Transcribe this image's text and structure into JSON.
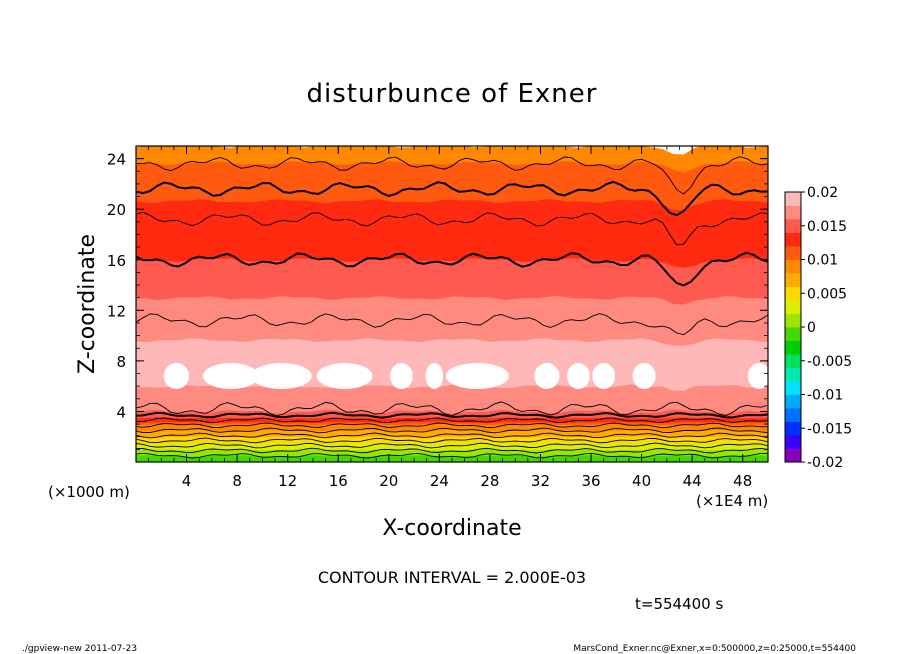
{
  "chart_data": {
    "type": "heatmap",
    "title": "disturbunce of Exner",
    "xlabel": "X-coordinate",
    "ylabel": "Z-coordinate",
    "x_unit_left": "(×1000 m)",
    "x_unit_right": "(×1E4 m)",
    "xlim": [
      0,
      50
    ],
    "ylim": [
      0,
      25
    ],
    "x_ticks": [
      "4",
      "8",
      "12",
      "16",
      "20",
      "24",
      "28",
      "32",
      "36",
      "40",
      "44",
      "48"
    ],
    "y_ticks": [
      "4",
      "8",
      "12",
      "16",
      "20",
      "24"
    ],
    "colorbar": {
      "range": [
        -0.02,
        0.02
      ],
      "tick_labels": [
        "0.02",
        "0.015",
        "0.01",
        "0.005",
        "0",
        "-0.005",
        "-0.01",
        "-0.015",
        "-0.02"
      ],
      "colors": [
        "#8800c0",
        "#3a00ff",
        "#0030ff",
        "#0070ff",
        "#00a8ff",
        "#00e0ff",
        "#00e8b0",
        "#00e060",
        "#00cc00",
        "#44d800",
        "#99e600",
        "#ddee00",
        "#ffd800",
        "#ffaa00",
        "#ff8800",
        "#ff5a10",
        "#ff2a10",
        "#ff5a50",
        "#ff8a80",
        "#ffb8b8"
      ]
    },
    "contour_interval": "CONTOUR INTERVAL = 2.000E-03",
    "time_label": "t=554400 s",
    "profile_levels": [
      {
        "z": 0,
        "value": -0.001
      },
      {
        "z": 0.5,
        "value": 0.0
      },
      {
        "z": 1.0,
        "value": 0.002
      },
      {
        "z": 1.5,
        "value": 0.004
      },
      {
        "z": 2.0,
        "value": 0.006
      },
      {
        "z": 2.5,
        "value": 0.008
      },
      {
        "z": 3.0,
        "value": 0.01
      },
      {
        "z": 3.5,
        "value": 0.014
      },
      {
        "z": 4.0,
        "value": 0.016
      },
      {
        "z": 5.0,
        "value": 0.017
      },
      {
        "z": 6.0,
        "value": 0.018
      },
      {
        "z": 7.0,
        "value": 0.0195
      },
      {
        "z": 8.0,
        "value": 0.0188
      },
      {
        "z": 10.0,
        "value": 0.0178
      },
      {
        "z": 12.0,
        "value": 0.0168
      },
      {
        "z": 14.0,
        "value": 0.0152
      },
      {
        "z": 16.0,
        "value": 0.014
      },
      {
        "z": 18.0,
        "value": 0.0132
      },
      {
        "z": 20.0,
        "value": 0.0124
      },
      {
        "z": 22.0,
        "value": 0.0112
      },
      {
        "z": 23.0,
        "value": 0.0105
      },
      {
        "z": 24.0,
        "value": 0.0098
      },
      {
        "z": 25.0,
        "value": 0.009
      }
    ],
    "disturbance_x": 43
  },
  "footer": {
    "left": "./gpview-new  2011-07-23",
    "right": "MarsCond_Exner.nc@Exner,x=0:500000,z=0:25000,t=554400"
  }
}
